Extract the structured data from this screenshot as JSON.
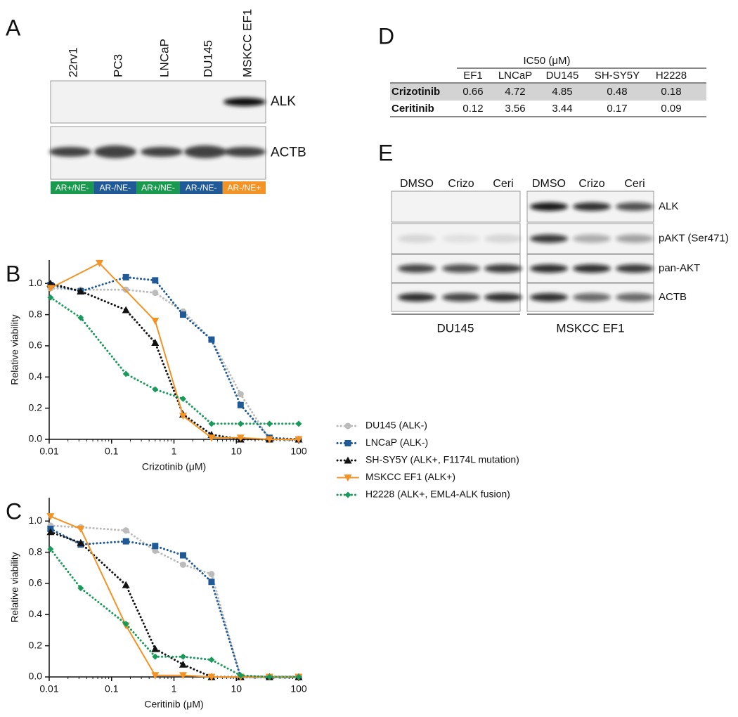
{
  "panel_a": {
    "letter": "A",
    "lanes": [
      "22rv1",
      "PC3",
      "LNCaP",
      "DU145",
      "MSKCC EF1"
    ],
    "proteins": [
      "ALK",
      "ACTB"
    ],
    "status": [
      {
        "label": "AR+/NE-",
        "color": "#1a9a4e"
      },
      {
        "label": "AR-/NE-",
        "color": "#1f5a96"
      },
      {
        "label": "AR+/NE-",
        "color": "#1a9a4e"
      },
      {
        "label": "AR-/NE-",
        "color": "#1f5a96"
      },
      {
        "label": "AR-/NE+",
        "color": "#f39325"
      }
    ]
  },
  "panel_d": {
    "letter": "D",
    "header": "IC50 (μM)",
    "columns": [
      "EF1",
      "LNCaP",
      "DU145",
      "SH-SY5Y",
      "H2228"
    ],
    "rows": [
      {
        "drug": "Crizotinib",
        "values": [
          0.66,
          4.72,
          4.85,
          0.48,
          0.18
        ]
      },
      {
        "drug": "Ceritinib",
        "values": [
          0.12,
          3.56,
          3.44,
          0.17,
          0.09
        ]
      }
    ]
  },
  "panel_e": {
    "letter": "E",
    "lanes": [
      "DMSO",
      "Crizo",
      "Ceri",
      "DMSO",
      "Crizo",
      "Ceri"
    ],
    "proteins": [
      "ALK",
      "pAKT (Ser471)",
      "pan-AKT",
      "ACTB"
    ],
    "groups": [
      "DU145",
      "MSKCC EF1"
    ]
  },
  "chart_data": [
    {
      "type": "scatter",
      "letter": "B",
      "xlabel": "Crizotinib (μM)",
      "ylabel": "Relative viability",
      "xscale": "log",
      "xlim": [
        0.01,
        100
      ],
      "xticks": [
        0.01,
        0.1,
        1,
        10,
        100
      ],
      "ylim": [
        0,
        1.15
      ],
      "yticks": [
        {
          "value": 0,
          "label": "0.0"
        },
        0.2,
        0.4,
        0.6,
        0.8,
        {
          "value": 1,
          "label": "1.0"
        }
      ],
      "x": [
        0.0105,
        0.032,
        0.17,
        0.5,
        1.4,
        4,
        11.7,
        34,
        100
      ],
      "series": [
        {
          "name": "DU145 (ALK-)",
          "color": "#bbbbbb",
          "marker": "circle",
          "line": "dotted",
          "values": [
            0.97,
            0.96,
            0.96,
            0.94,
            0.82,
            0.64,
            0.29,
            0.0,
            0.0
          ]
        },
        {
          "name": "LNCaP (ALK-)",
          "color": "#1f5a96",
          "marker": "square",
          "line": "dotted",
          "values": [
            0.99,
            0.95,
            1.04,
            1.02,
            0.8,
            0.64,
            0.22,
            0.01,
            0.0
          ]
        },
        {
          "name": "SH-SY5Y (ALK+, F1174L mutation)",
          "color": "#111111",
          "marker": "triangle",
          "line": "dotted",
          "values": [
            1.0,
            0.95,
            0.83,
            0.62,
            0.16,
            0.03,
            0.0,
            0.0,
            0.0
          ]
        },
        {
          "name": "MSKCC EF1 (ALK+)",
          "color": "#f39325",
          "marker": "triangle-down",
          "line": "solid",
          "x": [
            0.0105,
            0.064,
            0.5,
            1.4,
            4,
            11.7,
            34,
            100
          ],
          "values": [
            0.97,
            1.13,
            0.76,
            0.15,
            0.01,
            0.01,
            0.0,
            0.0
          ]
        },
        {
          "name": "H2228 (ALK+, EML4-ALK fusion)",
          "color": "#1a9a5a",
          "marker": "diamond",
          "line": "dotted",
          "values": [
            0.91,
            0.78,
            0.42,
            0.32,
            0.26,
            0.1,
            0.1,
            0.1,
            0.1
          ]
        }
      ]
    },
    {
      "type": "scatter",
      "letter": "C",
      "xlabel": "Ceritinib (μM)",
      "ylabel": "Relative viability",
      "xscale": "log",
      "xlim": [
        0.01,
        100
      ],
      "xticks": [
        0.01,
        0.1,
        1,
        10,
        100
      ],
      "ylim": [
        0,
        1.15
      ],
      "yticks": [
        {
          "value": 0,
          "label": "0.0"
        },
        0.2,
        0.4,
        0.6,
        0.8,
        {
          "value": 1,
          "label": "1.0"
        }
      ],
      "x": [
        0.0105,
        0.032,
        0.17,
        0.5,
        1.4,
        4,
        11.7,
        34,
        100
      ],
      "series": [
        {
          "color": "#bbbbbb",
          "marker": "circle",
          "line": "dotted",
          "values": [
            0.97,
            0.96,
            0.94,
            0.81,
            0.72,
            0.66,
            0.0,
            0.0,
            0.0
          ]
        },
        {
          "color": "#1f5a96",
          "marker": "square",
          "line": "dotted",
          "values": [
            0.95,
            0.85,
            0.87,
            0.84,
            0.78,
            0.61,
            0.0,
            0.0,
            0.0
          ]
        },
        {
          "color": "#111111",
          "marker": "triangle",
          "line": "dotted",
          "values": [
            0.93,
            0.86,
            0.59,
            0.18,
            0.08,
            0.0,
            0.0,
            0.0,
            0.0
          ]
        },
        {
          "color": "#f39325",
          "marker": "triangle-down",
          "line": "solid",
          "values": [
            1.03,
            0.95,
            0.33,
            0.01,
            0.01,
            0.0,
            0.0,
            0.0,
            0.0
          ]
        },
        {
          "color": "#1a9a5a",
          "marker": "diamond",
          "line": "dotted",
          "values": [
            0.82,
            0.57,
            0.34,
            0.13,
            0.13,
            0.11,
            0.01,
            0.0,
            0.0
          ]
        }
      ]
    }
  ]
}
